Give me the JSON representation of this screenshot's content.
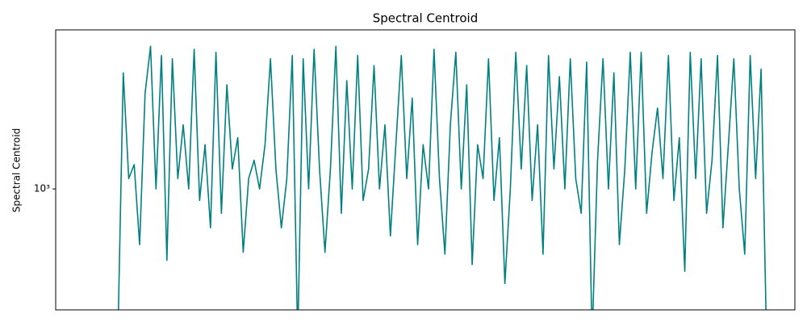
{
  "chart_data": {
    "type": "line",
    "title": "Spectral Centroid",
    "ylabel": "Spectral Centroid",
    "log_y": true,
    "grid": false,
    "x": [
      0,
      1,
      2,
      3,
      4,
      5,
      6,
      7,
      8,
      9,
      10,
      11,
      12,
      13,
      14,
      15,
      16,
      17,
      18,
      19,
      20,
      21,
      22,
      23,
      24,
      25,
      26,
      27,
      28,
      29,
      30,
      31,
      32,
      33,
      34,
      35,
      36,
      37,
      38,
      39,
      40,
      41,
      42,
      43,
      44,
      45,
      46,
      47,
      48,
      49,
      50,
      51,
      52,
      53,
      54,
      55,
      56,
      57,
      58,
      59,
      60,
      61,
      62,
      63,
      64,
      65,
      66,
      67,
      68,
      69,
      70,
      71,
      72,
      73,
      74,
      75,
      76,
      77,
      78,
      79,
      80,
      81,
      82,
      83,
      84,
      85,
      86,
      87,
      88,
      89,
      90,
      91,
      92,
      93,
      94,
      95,
      96,
      97,
      98,
      99,
      100,
      101,
      102,
      103,
      104,
      105,
      106,
      107,
      108,
      109,
      110,
      111,
      112,
      113,
      114,
      115,
      116,
      117,
      118,
      119
    ],
    "series": [
      {
        "name": "Spectral Centroid",
        "color": "#008080",
        "values": [
          250,
          2900,
          1100,
          1250,
          600,
          2400,
          3700,
          1000,
          3400,
          520,
          3300,
          1100,
          1800,
          1000,
          3600,
          900,
          1500,
          700,
          3500,
          800,
          2600,
          1200,
          1600,
          560,
          1100,
          1300,
          1000,
          1500,
          3300,
          1200,
          700,
          1100,
          3400,
          250,
          3300,
          1000,
          3600,
          1200,
          560,
          1200,
          3700,
          800,
          2700,
          1000,
          3400,
          900,
          1200,
          3100,
          1000,
          1800,
          650,
          1500,
          3400,
          1100,
          2300,
          600,
          1500,
          1000,
          3600,
          1100,
          550,
          1800,
          3500,
          1000,
          2600,
          500,
          1500,
          1100,
          3300,
          900,
          1600,
          420,
          1000,
          3500,
          1200,
          3100,
          900,
          1800,
          550,
          3400,
          1200,
          2800,
          1000,
          3300,
          1100,
          800,
          3200,
          250,
          1300,
          3300,
          1000,
          2900,
          600,
          1200,
          3500,
          1000,
          3500,
          800,
          1400,
          2100,
          1100,
          3400,
          900,
          1600,
          470,
          3500,
          1100,
          3300,
          800,
          1300,
          3400,
          700,
          1500,
          3300,
          1000,
          550,
          3400,
          1100,
          3000,
          250
        ]
      }
    ],
    "xlim": [
      -11.4,
      124.2
    ],
    "ylim": [
      330,
      4300
    ],
    "yticks": [
      {
        "value": 1000,
        "label": "10³"
      }
    ]
  }
}
